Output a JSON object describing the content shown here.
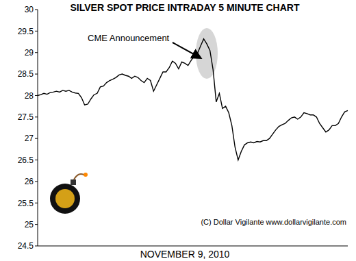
{
  "chart_data": {
    "type": "line",
    "title": "SILVER SPOT PRICE INTRADAY 5 MINUTE CHART",
    "annotation": "CME Announcement",
    "x_label": "NOVEMBER 9, 2010",
    "credit": "(C) Dollar Vigilante www.dollarvigilante.com",
    "color": "#000000",
    "ylim": [
      24.5,
      30
    ],
    "yticks": [
      24.5,
      25,
      25.5,
      26,
      26.5,
      27,
      27.5,
      28,
      28.5,
      29,
      29.5,
      30
    ],
    "grid": false,
    "tick_labels": "y",
    "values": [
      28.0,
      28.02,
      28.05,
      28.03,
      28.07,
      28.08,
      28.1,
      28.08,
      28.12,
      28.1,
      28.12,
      28.08,
      28.06,
      28.05,
      27.95,
      27.78,
      27.8,
      27.92,
      28.02,
      28.05,
      28.2,
      28.22,
      28.3,
      28.35,
      28.38,
      28.42,
      28.48,
      28.5,
      28.47,
      28.45,
      28.4,
      28.45,
      28.42,
      28.35,
      28.3,
      28.4,
      28.35,
      28.1,
      28.25,
      28.4,
      28.55,
      28.55,
      28.65,
      28.8,
      28.75,
      28.62,
      28.78,
      28.75,
      28.7,
      28.82,
      28.92,
      28.98,
      29.15,
      29.32,
      29.2,
      29.05,
      28.6,
      27.85,
      28.05,
      27.7,
      27.75,
      27.6,
      27.3,
      26.8,
      26.5,
      26.7,
      26.85,
      26.9,
      26.92,
      26.9,
      26.93,
      26.92,
      26.95,
      26.95,
      27.0,
      27.1,
      27.2,
      27.28,
      27.32,
      27.35,
      27.42,
      27.48,
      27.5,
      27.45,
      27.5,
      27.6,
      27.58,
      27.55,
      27.55,
      27.5,
      27.35,
      27.25,
      27.15,
      27.2,
      27.3,
      27.3,
      27.35,
      27.5,
      27.62,
      27.65
    ]
  }
}
